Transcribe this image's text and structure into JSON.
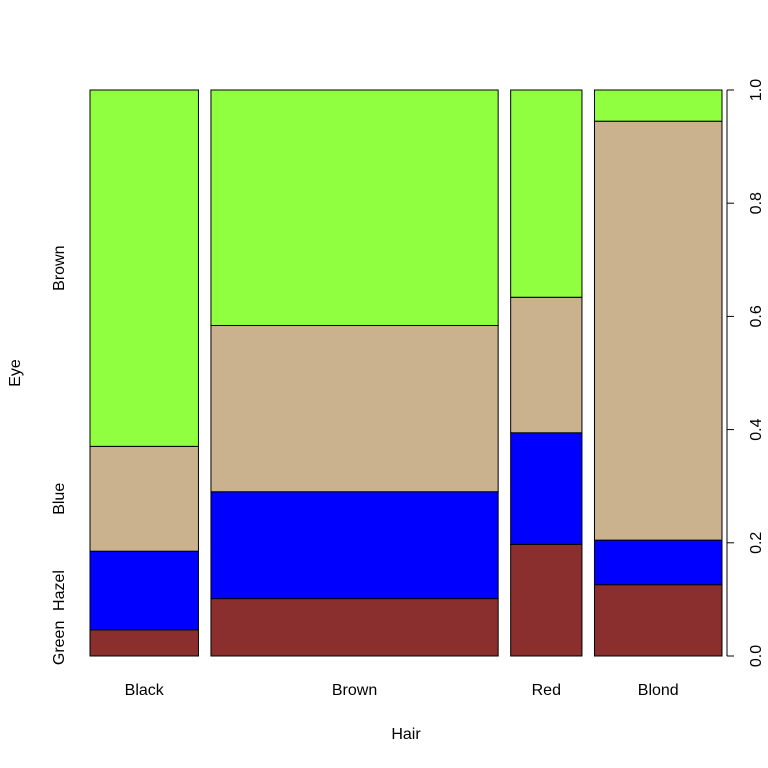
{
  "chart_data": {
    "type": "spineplot",
    "xlabel": "Hair",
    "ylabel": "Eye",
    "categories": [
      "Black",
      "Brown",
      "Red",
      "Blond"
    ],
    "column_totals": [
      108,
      286,
      71,
      127
    ],
    "eye_levels": [
      "Green",
      "Hazel",
      "Blue",
      "Brown"
    ],
    "series": [
      {
        "name": "Green",
        "color": "#8B2E2E",
        "values": [
          5,
          29,
          14,
          16
        ]
      },
      {
        "name": "Hazel",
        "color": "#0000FF",
        "values": [
          15,
          54,
          14,
          10
        ]
      },
      {
        "name": "Blue",
        "color": "#C9B28D",
        "values": [
          20,
          84,
          17,
          94
        ]
      },
      {
        "name": "Brown",
        "color": "#8FFF3F",
        "values": [
          68,
          119,
          26,
          7
        ]
      }
    ],
    "right_axis": {
      "ticks": [
        "0.0",
        "0.2",
        "0.4",
        "0.6",
        "0.8",
        "1.0"
      ],
      "range": [
        0,
        1
      ]
    },
    "grid": false
  }
}
